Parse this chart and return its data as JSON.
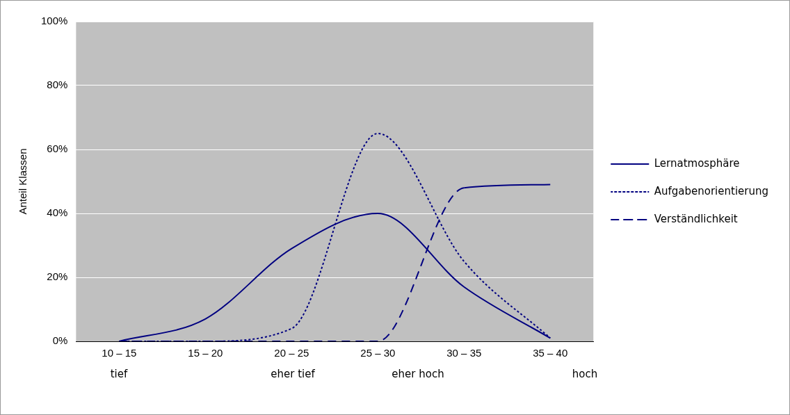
{
  "chart_data": {
    "type": "line",
    "ylabel": "Anteil Klassen",
    "categories": [
      "10 – 15",
      "15 – 20",
      "20 – 25",
      "25 – 30",
      "30 – 35",
      "35 – 40"
    ],
    "series": [
      {
        "name": "Lernatmosphäre",
        "color": "#000080",
        "line_style": "solid",
        "values": [
          0,
          7,
          29,
          40,
          17,
          1
        ]
      },
      {
        "name": "Aufgabenorientierung",
        "color": "#000080",
        "line_style": "dotted",
        "values": [
          0,
          0,
          4,
          65,
          25,
          1
        ]
      },
      {
        "name": "Verständlichkeit",
        "color": "#000080",
        "line_style": "dashed",
        "values": [
          0,
          0,
          0,
          0,
          48,
          49
        ]
      }
    ],
    "ylim": [
      0,
      100
    ],
    "yticks": [
      {
        "value": 0,
        "label": "0%"
      },
      {
        "value": 20,
        "label": "20%"
      },
      {
        "value": 40,
        "label": "40%"
      },
      {
        "value": 60,
        "label": "60%"
      },
      {
        "value": 80,
        "label": "80%"
      },
      {
        "value": 100,
        "label": "100%"
      }
    ],
    "grid": "y",
    "legend": "right",
    "marker": "none",
    "annotations": [
      "tief",
      "eher tief",
      "eher hoch",
      "hoch"
    ]
  }
}
